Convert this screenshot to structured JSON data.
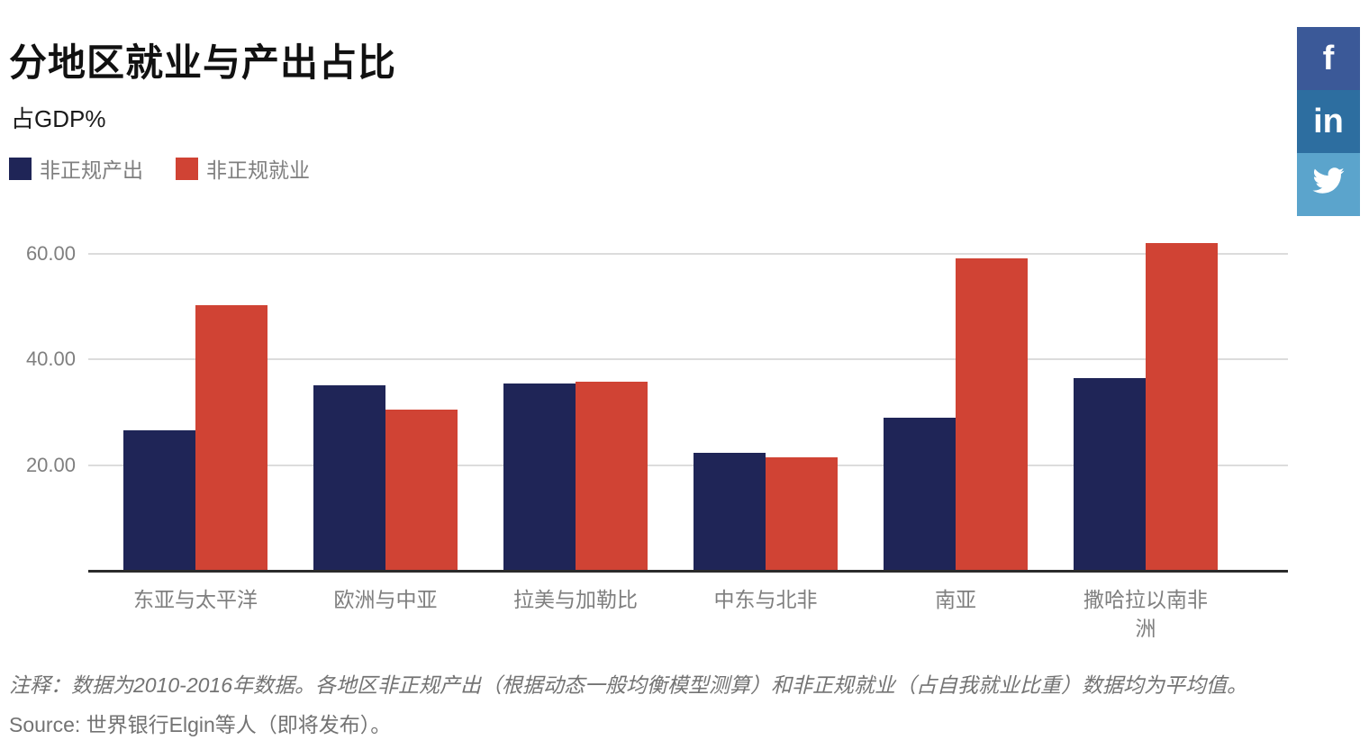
{
  "header": {
    "title": "分地区就业与产出占比",
    "subtitle": "占GDP%"
  },
  "social": [
    {
      "name": "facebook",
      "glyph": "f",
      "color": "#3b5998"
    },
    {
      "name": "linkedin",
      "glyph": "in",
      "color": "#2d6ea0"
    },
    {
      "name": "twitter",
      "glyph": "",
      "color": "#5ba4cc"
    }
  ],
  "chart_data": {
    "type": "bar",
    "title": "分地区就业与产出占比",
    "ylabel": "占GDP%",
    "categories": [
      "东亚与太平洋",
      "欧洲与中亚",
      "拉美与加勒比",
      "中东与北非",
      "南亚",
      "撒哈拉以南非洲"
    ],
    "series": [
      {
        "name": "非正规产出",
        "color": "#1f2557",
        "values": [
          26.7,
          35.2,
          35.5,
          22.4,
          29.0,
          36.5
        ]
      },
      {
        "name": "非正规就业",
        "color": "#d04334",
        "values": [
          50.2,
          30.5,
          35.8,
          21.6,
          59.0,
          62.0
        ]
      }
    ],
    "yticks": [
      20,
      40,
      60
    ],
    "ytick_labels": [
      "20.00",
      "40.00",
      "60.00"
    ],
    "ylim": [
      0,
      64
    ],
    "grid": true,
    "legend_position": "top-left"
  },
  "footer": {
    "note": "注释：数据为2010-2016年数据。各地区非正规产出（根据动态一般均衡模型测算）和非正规就业（占自我就业比重）数据均为平均值。",
    "source": "Source: 世界银行Elgin等人（即将发布）。"
  }
}
